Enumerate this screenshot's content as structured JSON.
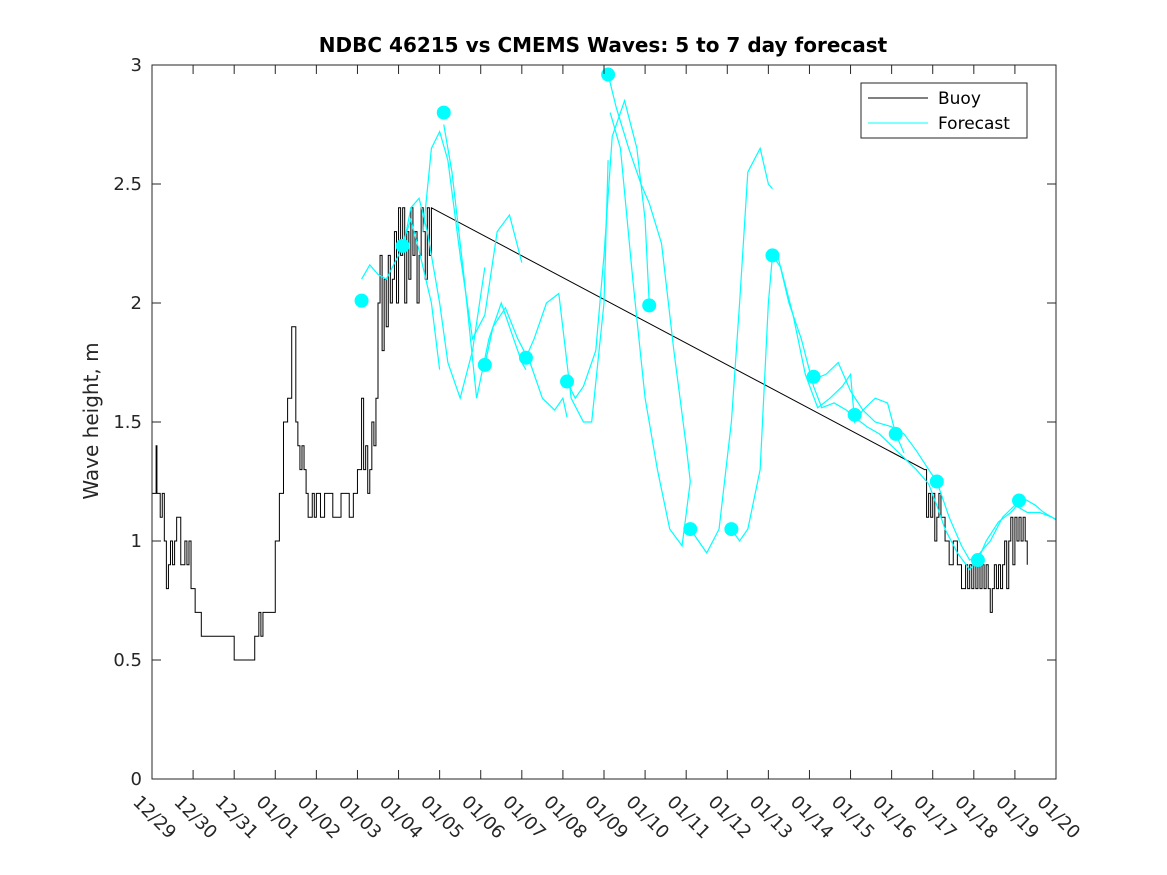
{
  "chart_data": {
    "type": "line",
    "title": "NDBC 46215 vs CMEMS Waves: 5 to 7 day forecast",
    "xlabel": "",
    "ylabel": "Wave height, m",
    "xlim": [
      0,
      22
    ],
    "ylim": [
      0,
      3
    ],
    "x_ticks": [
      0,
      1,
      2,
      3,
      4,
      5,
      6,
      7,
      8,
      9,
      10,
      11,
      12,
      13,
      14,
      15,
      16,
      17,
      18,
      19,
      20,
      21,
      22
    ],
    "x_tick_labels": [
      "12/29",
      "12/30",
      "12/31",
      "01/01",
      "01/02",
      "01/03",
      "01/04",
      "01/05",
      "01/06",
      "01/07",
      "01/08",
      "01/09",
      "01/10",
      "01/11",
      "01/12",
      "01/13",
      "01/14",
      "01/15",
      "01/16",
      "01/17",
      "01/18",
      "01/19",
      "01/20"
    ],
    "y_ticks": [
      0,
      0.5,
      1,
      1.5,
      2,
      2.5,
      3
    ],
    "y_tick_labels": [
      "0",
      "0.5",
      "1",
      "1.5",
      "2",
      "2.5",
      "3"
    ],
    "grid": false,
    "legend": {
      "placement": "top-right",
      "entries": [
        "Buoy",
        "Forecast"
      ]
    },
    "colors": {
      "buoy": "#000000",
      "forecast": "#00FFFF",
      "axes": "#262626"
    },
    "series": [
      {
        "name": "Buoy",
        "color": "#000000",
        "step": true,
        "x": [
          0,
          0.1,
          0.12,
          0.2,
          0.25,
          0.3,
          0.35,
          0.4,
          0.45,
          0.5,
          0.55,
          0.6,
          0.7,
          0.8,
          0.85,
          0.9,
          0.95,
          1.0,
          1.05,
          1.1,
          1.15,
          1.2,
          1.25,
          1.3,
          1.35,
          1.4,
          1.45,
          1.5,
          1.6,
          1.7,
          2.0,
          2.5,
          2.6,
          2.65,
          2.7,
          2.8,
          3.0,
          3.1,
          3.2,
          3.3,
          3.4,
          3.5,
          3.55,
          3.6,
          3.65,
          3.7,
          3.75,
          3.8,
          3.9,
          3.95,
          4.0,
          4.1,
          4.2,
          4.4,
          4.6,
          4.8,
          4.9,
          5.0,
          5.1,
          5.15,
          5.2,
          5.25,
          5.3,
          5.35,
          5.4,
          5.45,
          5.5,
          5.55,
          5.6,
          5.65,
          5.7,
          5.75,
          5.8,
          5.85,
          5.9,
          5.95,
          6.0,
          6.05,
          6.1,
          6.15,
          6.2,
          6.25,
          6.3,
          6.35,
          6.4,
          6.45,
          6.5,
          6.55,
          6.6,
          6.65,
          6.7,
          6.75,
          6.8,
          18.8,
          18.85,
          18.9,
          18.95,
          19.0,
          19.05,
          19.1,
          19.15,
          19.2,
          19.3,
          19.4,
          19.5,
          19.6,
          19.7,
          19.8,
          19.85,
          19.9,
          19.95,
          20.0,
          20.05,
          20.1,
          20.15,
          20.2,
          20.25,
          20.3,
          20.35,
          20.4,
          20.45,
          20.5,
          20.55,
          20.6,
          20.65,
          20.7,
          20.75,
          20.8,
          20.85,
          20.9,
          20.95,
          21.0,
          21.05,
          21.1,
          21.15,
          21.2,
          21.25,
          21.3
        ],
        "values": [
          1.2,
          1.4,
          1.2,
          1.1,
          1.2,
          1.0,
          0.8,
          0.9,
          1.0,
          0.9,
          1.0,
          1.1,
          0.9,
          1.0,
          0.9,
          1.0,
          0.8,
          0.8,
          0.7,
          0.7,
          0.7,
          0.6,
          0.6,
          0.6,
          0.6,
          0.6,
          0.6,
          0.6,
          0.6,
          0.6,
          0.5,
          0.6,
          0.7,
          0.6,
          0.7,
          0.7,
          1.0,
          1.2,
          1.5,
          1.6,
          1.9,
          1.5,
          1.4,
          1.3,
          1.4,
          1.3,
          1.2,
          1.1,
          1.2,
          1.1,
          1.2,
          1.1,
          1.2,
          1.1,
          1.2,
          1.1,
          1.2,
          1.3,
          1.6,
          1.3,
          1.4,
          1.2,
          1.3,
          1.5,
          1.4,
          1.6,
          2.0,
          2.2,
          1.8,
          2.1,
          1.9,
          2.2,
          2.0,
          2.1,
          2.3,
          2.0,
          2.4,
          2.2,
          2.4,
          2.0,
          2.3,
          2.1,
          2.4,
          2.2,
          2.3,
          2.0,
          2.2,
          2.4,
          2.3,
          2.1,
          2.4,
          2.2,
          2.4,
          1.3,
          1.1,
          1.2,
          1.1,
          1.2,
          1.0,
          1.1,
          1.2,
          1.1,
          1.0,
          0.9,
          1.0,
          0.9,
          0.8,
          0.9,
          0.8,
          0.9,
          0.8,
          0.9,
          0.8,
          0.9,
          0.8,
          0.9,
          0.8,
          0.9,
          0.8,
          0.7,
          0.8,
          0.9,
          0.8,
          0.9,
          0.8,
          0.9,
          1.0,
          0.8,
          1.0,
          1.1,
          0.9,
          1.1,
          1.0,
          1.1,
          1.0,
          1.1,
          1.0,
          0.9
        ]
      },
      {
        "name": "Forecast",
        "color": "#00FFFF",
        "segments": [
          {
            "x": [
              5.1,
              5.3,
              5.5,
              5.7,
              6.0,
              6.3,
              6.5,
              6.8,
              7.0
            ],
            "values": [
              2.1,
              2.16,
              2.12,
              2.1,
              2.2,
              2.35,
              2.22,
              2.0,
              1.72
            ]
          },
          {
            "x": [
              6.1,
              6.3,
              6.5,
              6.7,
              7.0,
              7.2,
              7.5,
              7.8,
              8.1
            ],
            "values": [
              2.22,
              2.4,
              2.44,
              2.3,
              2.0,
              1.75,
              1.6,
              1.8,
              2.15
            ]
          },
          {
            "x": [
              6.6,
              6.8,
              7.0,
              7.2,
              7.5,
              7.8,
              8.1,
              8.4,
              8.7,
              9.0
            ],
            "values": [
              2.3,
              2.65,
              2.72,
              2.6,
              2.2,
              1.85,
              1.95,
              2.3,
              2.37,
              2.17
            ]
          },
          {
            "x": [
              7.1,
              7.3,
              7.6,
              7.9,
              8.2,
              8.5,
              8.7,
              9.0,
              9.1
            ],
            "values": [
              2.75,
              2.55,
              2.1,
              1.6,
              1.85,
              2.0,
              1.9,
              1.75,
              1.72
            ]
          },
          {
            "x": [
              8.1,
              8.3,
              8.6,
              8.9,
              9.2,
              9.5,
              9.8,
              10.0,
              10.1
            ],
            "values": [
              1.74,
              1.9,
              1.98,
              1.85,
              1.75,
              1.6,
              1.55,
              1.6,
              1.52
            ]
          },
          {
            "x": [
              9.1,
              9.3,
              9.6,
              9.9,
              10.2,
              10.5,
              10.7,
              11.0,
              11.1
            ],
            "values": [
              1.77,
              1.85,
              2.0,
              2.04,
              1.6,
              1.5,
              1.5,
              2.0,
              2.6
            ]
          },
          {
            "x": [
              10.1,
              10.3,
              10.5,
              10.8,
              11.0,
              11.2,
              11.5,
              11.8,
              12.0,
              12.1
            ],
            "values": [
              1.67,
              1.6,
              1.65,
              1.8,
              2.2,
              2.7,
              2.85,
              2.65,
              2.35,
              2.0
            ]
          },
          {
            "x": [
              11.1,
              11.3,
              11.6,
              11.9,
              12.1,
              12.4,
              12.7,
              13.0,
              13.1
            ],
            "values": [
              2.96,
              2.82,
              2.65,
              2.5,
              2.42,
              2.25,
              1.8,
              1.4,
              1.25
            ]
          },
          {
            "x": [
              11.15,
              11.4,
              11.7,
              12.0,
              12.3,
              12.6,
              12.9,
              13.1
            ],
            "values": [
              2.8,
              2.65,
              2.1,
              1.6,
              1.3,
              1.05,
              0.98,
              1.25
            ]
          },
          {
            "x": [
              13.1,
              13.3,
              13.5,
              13.8,
              14.1,
              14.3,
              14.5,
              14.8,
              15.0,
              15.1
            ],
            "values": [
              1.05,
              1.0,
              0.95,
              1.05,
              1.5,
              2.0,
              2.55,
              2.65,
              2.5,
              2.48
            ]
          },
          {
            "x": [
              14.1,
              14.3,
              14.5,
              14.8,
              15.0,
              15.1,
              15.3,
              15.6,
              15.9,
              16.2,
              16.5,
              16.8,
              17.0,
              17.1,
              17.3,
              17.6,
              17.9,
              18.1,
              18.3
            ],
            "values": [
              1.05,
              1.0,
              1.05,
              1.3,
              2.0,
              2.2,
              2.15,
              1.95,
              1.7,
              1.56,
              1.6,
              1.65,
              1.7,
              1.5,
              1.55,
              1.6,
              1.58,
              1.45,
              1.37
            ]
          },
          {
            "x": [
              15.2,
              15.5,
              15.8,
              16.1,
              16.3,
              16.6,
              16.9,
              17.1,
              17.4,
              17.7,
              18.0,
              18.3,
              18.6,
              18.9,
              19.1,
              19.3,
              19.6,
              19.9,
              20.1,
              20.3,
              20.6,
              20.9,
              21.2,
              21.5,
              21.7,
              22.0
            ],
            "values": [
              2.22,
              2.0,
              1.85,
              1.65,
              1.56,
              1.58,
              1.55,
              1.52,
              1.48,
              1.45,
              1.4,
              1.35,
              1.3,
              1.24,
              1.15,
              1.05,
              0.95,
              0.88,
              0.92,
              1.0,
              1.08,
              1.12,
              1.18,
              1.15,
              1.12,
              1.09
            ]
          },
          {
            "x": [
              16.1,
              16.4,
              16.7,
              17.0,
              17.3,
              17.6,
              18.0,
              18.3,
              18.6,
              18.9,
              19.1,
              19.4,
              19.7,
              19.9,
              20.1,
              20.4,
              20.7,
              21.0,
              21.3,
              21.6,
              21.9,
              22.0
            ],
            "values": [
              1.68,
              1.7,
              1.75,
              1.63,
              1.55,
              1.5,
              1.48,
              1.45,
              1.38,
              1.3,
              1.25,
              1.1,
              0.98,
              0.92,
              0.94,
              1.0,
              1.1,
              1.15,
              1.12,
              1.12,
              1.1,
              1.09
            ]
          }
        ],
        "markers": {
          "x": [
            5.1,
            6.1,
            7.1,
            8.1,
            9.1,
            10.1,
            11.1,
            12.1,
            13.1,
            14.1,
            15.1,
            16.1,
            17.1,
            18.1,
            19.1,
            20.1,
            21.1
          ],
          "values": [
            2.01,
            2.24,
            2.8,
            1.74,
            1.77,
            1.67,
            2.96,
            1.99,
            1.05,
            1.05,
            2.2,
            1.69,
            1.53,
            1.45,
            1.25,
            0.92,
            1.17
          ]
        }
      }
    ]
  }
}
